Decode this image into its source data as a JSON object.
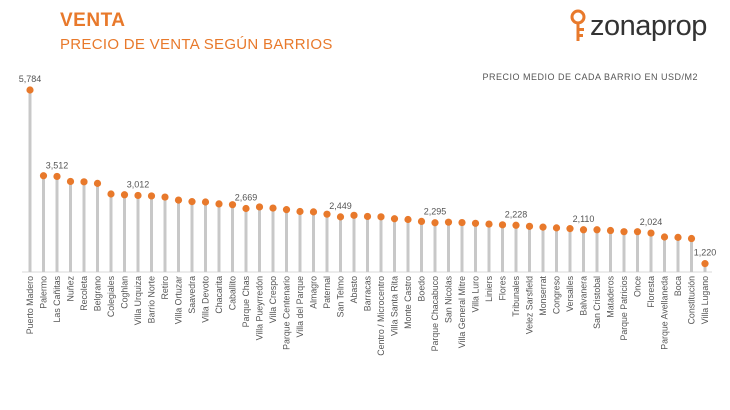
{
  "header": {
    "title": "VENTA",
    "subtitle": "PRECIO DE VENTA SEGÚN BARRIOS",
    "brand": "zonaprop",
    "unit_note": "PRECIO MEDIO DE CADA BARRIO EN USD/M2"
  },
  "colors": {
    "accent": "#e8792b",
    "stem": "#c8c8c8",
    "text": "#555555"
  },
  "chart_data": {
    "type": "lollipop",
    "title": "PRECIO DE VENTA SEGÚN BARRIOS",
    "ylabel": "",
    "xlabel": "",
    "ylim": [
      1000,
      5900
    ],
    "grid": false,
    "categories": [
      "Puerto Madero",
      "Palermo",
      "Las Cañitas",
      "Nuñez",
      "Recoleta",
      "Belgrano",
      "Colegiales",
      "Coghlan",
      "Villa Urquiza",
      "Barrio Norte",
      "Retiro",
      "Villa Ortuzar",
      "Saavedra",
      "Villa Devoto",
      "Chacarita",
      "Caballito",
      "Parque Chas",
      "Villa Pueyrredón",
      "Villa Crespo",
      "Parque Centenario",
      "Villa del Parque",
      "Almagro",
      "Paternal",
      "San Telmo",
      "Abasto",
      "Barracas",
      "Centro / Microcentro",
      "Villa Santa Rita",
      "Monte Castro",
      "Boedo",
      "Parque Chacabuco",
      "San Nicolas",
      "Villa General Mitre",
      "Villa Luro",
      "Liniers",
      "Flores",
      "Tribunales",
      "Velez Sarsfield",
      "Monserrat",
      "Congreso",
      "Versalles",
      "Balvanera",
      "San Cristobal",
      "Mataderos",
      "Parque Patricios",
      "Once",
      "Floresta",
      "Parque Avellaneda",
      "Boca",
      "Constitución",
      "Villa Lugano"
    ],
    "values": [
      5784,
      3530,
      3512,
      3380,
      3370,
      3330,
      3050,
      3030,
      3012,
      3000,
      2970,
      2890,
      2850,
      2840,
      2790,
      2770,
      2669,
      2710,
      2680,
      2640,
      2590,
      2580,
      2520,
      2449,
      2490,
      2460,
      2450,
      2400,
      2380,
      2330,
      2295,
      2310,
      2300,
      2280,
      2260,
      2240,
      2228,
      2200,
      2180,
      2160,
      2140,
      2110,
      2110,
      2090,
      2060,
      2060,
      2024,
      1920,
      1910,
      1880,
      1220
    ],
    "labels": {
      "0": "5,784",
      "2": "3,512",
      "8": "3,012",
      "16": "2,669",
      "23": "2,449",
      "30": "2,295",
      "36": "2,228",
      "41": "2,110",
      "46": "2,024",
      "50": "1,220"
    }
  }
}
